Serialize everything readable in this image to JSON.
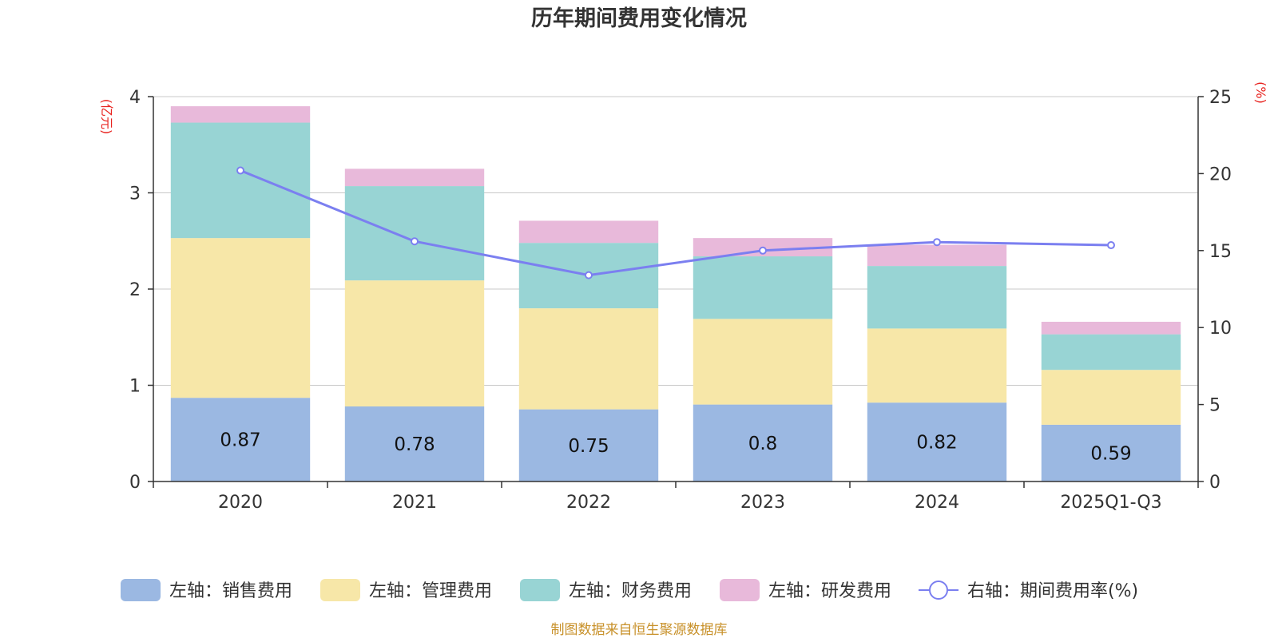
{
  "chart_data": {
    "type": "bar",
    "stacked": true,
    "title": "历年期间费用变化情况",
    "categories": [
      "2020",
      "2021",
      "2022",
      "2023",
      "2024",
      "2025Q1-Q3"
    ],
    "left_axis": {
      "unit_label": "(亿元)",
      "ylim": [
        0,
        4
      ],
      "ticks": [
        "0",
        "1",
        "2",
        "3",
        "4"
      ]
    },
    "right_axis": {
      "unit_label": "(%)",
      "ylim": [
        0,
        25
      ],
      "ticks": [
        "0",
        "5",
        "10",
        "15",
        "20",
        "25"
      ]
    },
    "series": [
      {
        "name": "左轴：销售费用",
        "axis": "left",
        "color": "#9bb8e2",
        "values": [
          0.87,
          0.78,
          0.75,
          0.8,
          0.82,
          0.59
        ],
        "labels": [
          "0.87",
          "0.78",
          "0.75",
          "0.8",
          "0.82",
          "0.59"
        ]
      },
      {
        "name": "左轴：管理费用",
        "axis": "left",
        "color": "#f7e7a8",
        "values": [
          1.66,
          1.31,
          1.05,
          0.89,
          0.77,
          0.57
        ]
      },
      {
        "name": "左轴：财务费用",
        "axis": "left",
        "color": "#98d4d4",
        "values": [
          1.2,
          0.98,
          0.68,
          0.65,
          0.65,
          0.37
        ]
      },
      {
        "name": "左轴：研发费用",
        "axis": "left",
        "color": "#e8b9da",
        "values": [
          0.17,
          0.18,
          0.23,
          0.19,
          0.22,
          0.13
        ]
      }
    ],
    "line_series": {
      "name": "右轴：期间费用率(%)",
      "axis": "right",
      "color": "#7b7ff0",
      "values": [
        20.2,
        15.6,
        13.4,
        15.0,
        15.55,
        15.35
      ]
    },
    "legend": "bottom-center",
    "grid": true,
    "source": "制图数据来自恒生聚源数据库"
  }
}
